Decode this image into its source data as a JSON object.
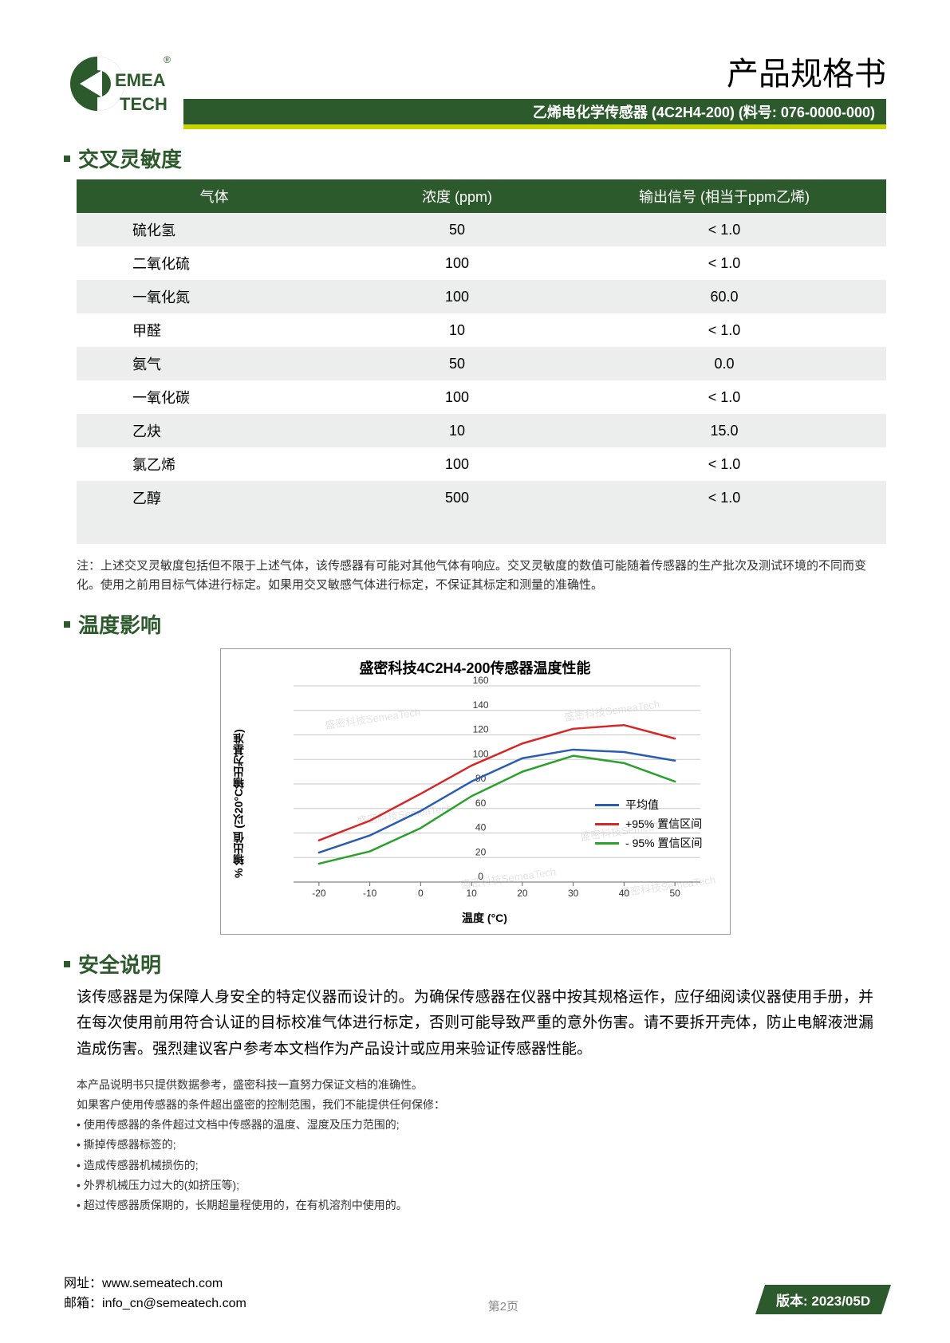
{
  "header": {
    "brand_top": "EMEA",
    "brand_bottom": "TECH",
    "registered": "®",
    "doc_title": "产品规格书",
    "bar_text": "乙烯电化学传感器 (4C2H4-200) (料号: 076-0000-000)",
    "brand_color": "#2d5a2d",
    "accent_color": "#c8d400"
  },
  "cross_sensitivity": {
    "title": "交叉灵敏度",
    "columns": [
      "气体",
      "浓度 (ppm)",
      "输出信号 (相当于ppm乙烯)"
    ],
    "rows": [
      [
        "硫化氢",
        "50",
        "< 1.0"
      ],
      [
        "二氧化硫",
        "100",
        "< 1.0"
      ],
      [
        "一氧化氮",
        "100",
        "60.0"
      ],
      [
        "甲醛",
        "10",
        "< 1.0"
      ],
      [
        "氨气",
        "50",
        "0.0"
      ],
      [
        "一氧化碳",
        "100",
        "< 1.0"
      ],
      [
        "乙炔",
        "10",
        "15.0"
      ],
      [
        "氯乙烯",
        "100",
        "< 1.0"
      ],
      [
        "乙醇",
        "500",
        "< 1.0"
      ]
    ],
    "note": "注：上述交叉灵敏度包括但不限于上述气体，该传感器有可能对其他气体有响应。交叉灵敏度的数值可能随着传感器的生产批次及测试环境的不同而变化。使用之前用目标气体进行标定。如果用交叉敏感气体进行标定，不保证其标定和测量的准确性。"
  },
  "temperature": {
    "title": "温度影响",
    "chart": {
      "type": "line",
      "title": "盛密科技4C2H4-200传感器温度性能",
      "x_label": "温度 (°C)",
      "y_label": "% 输出值 (以20°C输出为基准)",
      "x_ticks": [
        -20,
        -10,
        0,
        10,
        20,
        30,
        40,
        50
      ],
      "y_ticks": [
        0,
        20,
        40,
        60,
        80,
        100,
        120,
        140,
        160
      ],
      "ylim": [
        0,
        160
      ],
      "xlim": [
        -25,
        55
      ],
      "grid_color": "#c8c8c8",
      "background_color": "#ffffff",
      "border_color": "#999999",
      "tick_fontsize": 12,
      "label_fontsize": 14,
      "title_fontsize": 18,
      "line_width": 2.5,
      "series": [
        {
          "name": "平均值",
          "color": "#2a5db0",
          "data": [
            [
              -20,
              24
            ],
            [
              -10,
              38
            ],
            [
              0,
              58
            ],
            [
              10,
              82
            ],
            [
              20,
              101
            ],
            [
              30,
              108
            ],
            [
              40,
              106
            ],
            [
              50,
              99
            ]
          ]
        },
        {
          "name": "+95% 置信区间",
          "color": "#d62728",
          "data": [
            [
              -20,
              34
            ],
            [
              -10,
              50
            ],
            [
              0,
              72
            ],
            [
              10,
              95
            ],
            [
              20,
              113
            ],
            [
              30,
              125
            ],
            [
              40,
              128
            ],
            [
              50,
              117
            ]
          ]
        },
        {
          "name": "- 95% 置信区间",
          "color": "#2ca02c",
          "data": [
            [
              -20,
              15
            ],
            [
              -10,
              25
            ],
            [
              0,
              44
            ],
            [
              10,
              70
            ],
            [
              20,
              90
            ],
            [
              30,
              103
            ],
            [
              40,
              97
            ],
            [
              50,
              82
            ]
          ]
        }
      ],
      "watermark_text": "盛密科技SemeaTech",
      "watermark_color": "#e4e4e4"
    }
  },
  "safety": {
    "title": "安全说明",
    "body": "该传感器是为保障人身安全的特定仪器而设计的。为确保传感器在仪器中按其规格运作，应仔细阅读仪器使用手册，并在每次使用前用符合认证的目标校准气体进行标定，否则可能导致严重的意外伤害。请不要拆开壳体，防止电解液泄漏造成伤害。强烈建议客户参考本文档作为产品设计或应用来验证传感器性能。",
    "fine_intro1": "本产品说明书只提供数据参考，盛密科技一直努力保证文档的准确性。",
    "fine_intro2": "如果客户使用传感器的条件超出盛密的控制范围，我们不能提供任何保修：",
    "fine_items": [
      "• 使用传感器的条件超过文档中传感器的温度、湿度及压力范围的;",
      "• 撕掉传感器标签的;",
      "• 造成传感器机械损伤的;",
      "• 外界机械压力过大的(如挤压等);",
      "• 超过传感器质保期的，长期超量程使用的，在有机溶剂中使用的。"
    ]
  },
  "footer": {
    "url_label": "网址：",
    "url": "www.semeatech.com",
    "email_label": "邮箱：",
    "email": "info_cn@semeatech.com",
    "page": "第2页",
    "version": "版本: 2023/05D",
    "badge_color": "#2d5a2d"
  }
}
